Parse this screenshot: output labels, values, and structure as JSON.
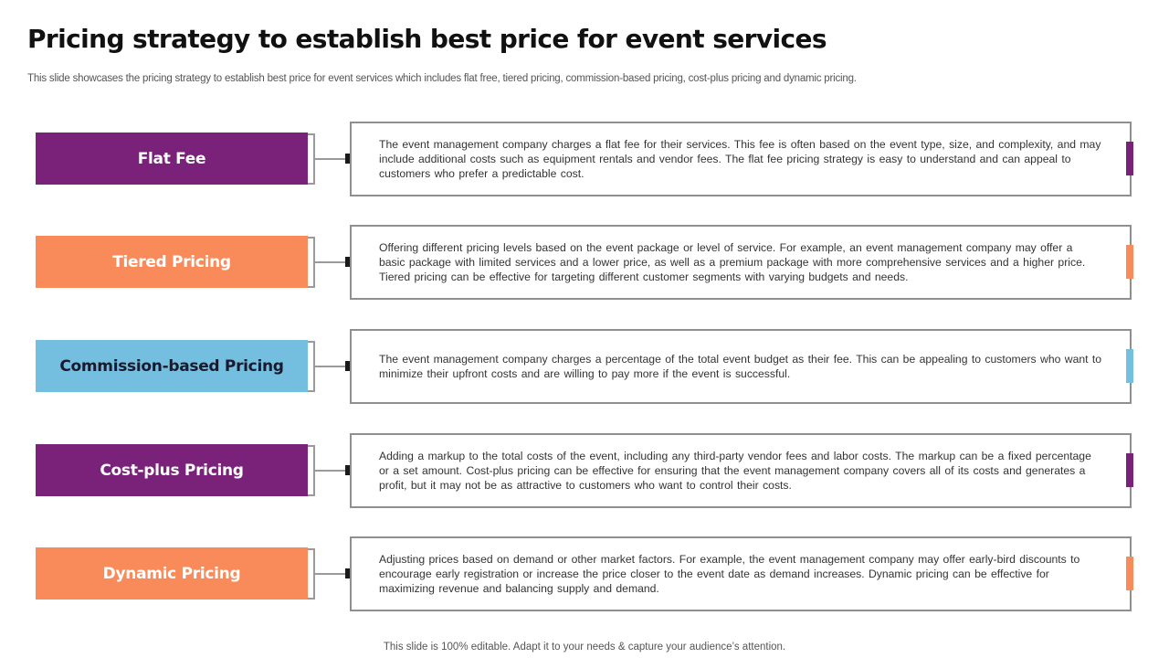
{
  "slide": {
    "title": "Pricing strategy to establish best price for event services",
    "subtitle": "This slide showcases the pricing strategy to establish best price for event services which includes flat free, tiered pricing, commission-based pricing, cost-plus pricing and dynamic pricing.",
    "footer": "This slide is 100% editable. Adapt it to your needs & capture your audience’s attention."
  },
  "colors": {
    "purple": "#7a227a",
    "orange": "#f98b5a",
    "blue": "#74bfe0"
  },
  "strategies": [
    {
      "label": "Flat Fee",
      "color": "#7a227a",
      "description": "The event management company charges a flat fee for their services. This fee is often based on the event type, size, and complexity, and may include additional costs such as equipment rentals and vendor fees. The flat fee pricing strategy is easy to understand and can appeal to customers who prefer a predictable cost."
    },
    {
      "label": "Tiered Pricing",
      "color": "#f98b5a",
      "description": "Offering different pricing levels based on the event package or level of service. For example, an event management company may offer a basic package with limited services and a lower price, as well as a premium package with more comprehensive services and a higher price. Tiered pricing can be effective for targeting different customer segments with varying budgets and needs."
    },
    {
      "label": "Commission-based Pricing",
      "color": "#74bfe0",
      "description": "The event management company charges a percentage of the total event budget as their fee. This can be appealing to customers who want to minimize their upfront costs and are willing to pay more if the event is successful."
    },
    {
      "label": "Cost-plus Pricing",
      "color": "#7a227a",
      "description": "Adding a markup to the total costs of the event, including any third-party vendor fees and labor costs. The markup can be a fixed percentage or a set amount. Cost-plus pricing can be effective for ensuring that the event management company covers all of its costs and generates a profit, but it may not be as attractive to customers who want to control their costs."
    },
    {
      "label": "Dynamic Pricing",
      "color": "#f98b5a",
      "description": "Adjusting prices based on demand or other market factors. For example, the event management company may offer early-bird discounts to encourage early registration or increase the price closer to the event date as demand increases. Dynamic pricing can be effective for maximizing revenue and balancing supply and demand."
    }
  ]
}
